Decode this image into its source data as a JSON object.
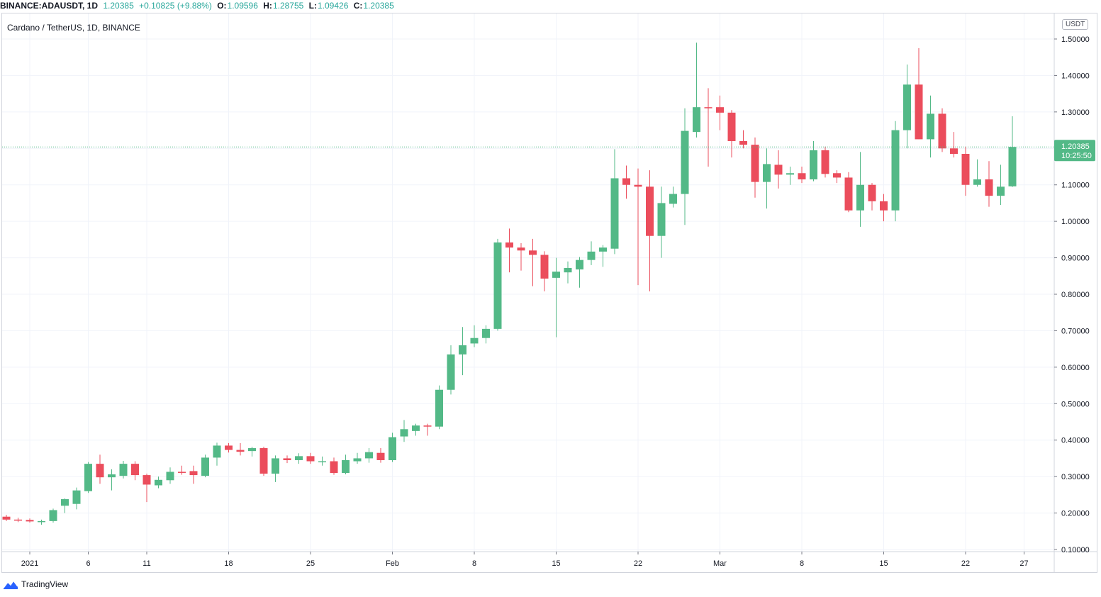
{
  "header": {
    "symbol": "BINANCE:ADAUSDT, 1D",
    "last": "1.20385",
    "change": "+0.10825 (+9.88%)",
    "o_label": "O:",
    "o_val": "1.09596",
    "h_label": "H:",
    "h_val": "1.28755",
    "l_label": "L:",
    "l_val": "1.09426",
    "c_label": "C:",
    "c_val": "1.20385"
  },
  "chart_title": "Cardano / TetherUS, 1D, BINANCE",
  "unit": "USDT",
  "price_tag": {
    "price": "1.20385",
    "countdown": "10:25:50"
  },
  "footer": {
    "brand": "TradingView"
  },
  "colors": {
    "up": "#53b987",
    "down": "#eb4d5c",
    "grid": "#f0f3fa",
    "axis_text": "#131722"
  },
  "chart_data": {
    "type": "candlestick",
    "ylim": [
      0.1,
      1.5
    ],
    "grid": true,
    "y_ticks": [
      "1.50000",
      "1.40000",
      "1.30000",
      "1.20000",
      "1.10000",
      "1.00000",
      "0.90000",
      "0.80000",
      "0.70000",
      "0.60000",
      "0.50000",
      "0.40000",
      "0.30000",
      "0.20000",
      "0.10000"
    ],
    "y_tick_values": [
      1.5,
      1.4,
      1.3,
      1.2,
      1.1,
      1.0,
      0.9,
      0.8,
      0.7,
      0.6,
      0.5,
      0.4,
      0.3,
      0.2,
      0.1
    ],
    "x_ticks": [
      {
        "label": "2021",
        "index": 2
      },
      {
        "label": "6",
        "index": 7
      },
      {
        "label": "11",
        "index": 12
      },
      {
        "label": "18",
        "index": 19
      },
      {
        "label": "25",
        "index": 26
      },
      {
        "label": "Feb",
        "index": 33
      },
      {
        "label": "8",
        "index": 40
      },
      {
        "label": "15",
        "index": 47
      },
      {
        "label": "22",
        "index": 54
      },
      {
        "label": "Mar",
        "index": 61
      },
      {
        "label": "8",
        "index": 68
      },
      {
        "label": "15",
        "index": 75
      },
      {
        "label": "22",
        "index": 82
      },
      {
        "label": "27",
        "index": 87
      }
    ],
    "dates": [
      "2020-12-30",
      "2020-12-31",
      "2021-01-01",
      "2021-01-02",
      "2021-01-03",
      "2021-01-04",
      "2021-01-05",
      "2021-01-06",
      "2021-01-07",
      "2021-01-08",
      "2021-01-09",
      "2021-01-10",
      "2021-01-11",
      "2021-01-12",
      "2021-01-13",
      "2021-01-14",
      "2021-01-15",
      "2021-01-16",
      "2021-01-17",
      "2021-01-18",
      "2021-01-19",
      "2021-01-20",
      "2021-01-21",
      "2021-01-22",
      "2021-01-23",
      "2021-01-24",
      "2021-01-25",
      "2021-01-26",
      "2021-01-27",
      "2021-01-28",
      "2021-01-29",
      "2021-01-30",
      "2021-01-31",
      "2021-02-01",
      "2021-02-02",
      "2021-02-03",
      "2021-02-04",
      "2021-02-05",
      "2021-02-06",
      "2021-02-07",
      "2021-02-08",
      "2021-02-09",
      "2021-02-10",
      "2021-02-11",
      "2021-02-12",
      "2021-02-13",
      "2021-02-14",
      "2021-02-15",
      "2021-02-16",
      "2021-02-17",
      "2021-02-18",
      "2021-02-19",
      "2021-02-20",
      "2021-02-21",
      "2021-02-22",
      "2021-02-23",
      "2021-02-24",
      "2021-02-25",
      "2021-02-26",
      "2021-02-27",
      "2021-02-28",
      "2021-03-01",
      "2021-03-02",
      "2021-03-03",
      "2021-03-04",
      "2021-03-05",
      "2021-03-06",
      "2021-03-07",
      "2021-03-08",
      "2021-03-09",
      "2021-03-10",
      "2021-03-11",
      "2021-03-12",
      "2021-03-13",
      "2021-03-14",
      "2021-03-15",
      "2021-03-16",
      "2021-03-17",
      "2021-03-18",
      "2021-03-19",
      "2021-03-20",
      "2021-03-21",
      "2021-03-22",
      "2021-03-23",
      "2021-03-24",
      "2021-03-25",
      "2021-03-26"
    ],
    "candles": [
      {
        "o": 0.19,
        "h": 0.195,
        "l": 0.178,
        "c": 0.182
      },
      {
        "o": 0.182,
        "h": 0.187,
        "l": 0.175,
        "c": 0.18
      },
      {
        "o": 0.181,
        "h": 0.185,
        "l": 0.174,
        "c": 0.177
      },
      {
        "o": 0.175,
        "h": 0.182,
        "l": 0.168,
        "c": 0.178
      },
      {
        "o": 0.178,
        "h": 0.212,
        "l": 0.174,
        "c": 0.208
      },
      {
        "o": 0.22,
        "h": 0.24,
        "l": 0.2,
        "c": 0.238
      },
      {
        "o": 0.225,
        "h": 0.27,
        "l": 0.21,
        "c": 0.262
      },
      {
        "o": 0.26,
        "h": 0.34,
        "l": 0.255,
        "c": 0.335
      },
      {
        "o": 0.335,
        "h": 0.36,
        "l": 0.28,
        "c": 0.298
      },
      {
        "o": 0.298,
        "h": 0.32,
        "l": 0.262,
        "c": 0.306
      },
      {
        "o": 0.302,
        "h": 0.343,
        "l": 0.295,
        "c": 0.335
      },
      {
        "o": 0.335,
        "h": 0.342,
        "l": 0.29,
        "c": 0.304
      },
      {
        "o": 0.304,
        "h": 0.308,
        "l": 0.23,
        "c": 0.278
      },
      {
        "o": 0.276,
        "h": 0.3,
        "l": 0.268,
        "c": 0.291
      },
      {
        "o": 0.29,
        "h": 0.325,
        "l": 0.28,
        "c": 0.313
      },
      {
        "o": 0.313,
        "h": 0.33,
        "l": 0.305,
        "c": 0.312
      },
      {
        "o": 0.315,
        "h": 0.33,
        "l": 0.28,
        "c": 0.304
      },
      {
        "o": 0.302,
        "h": 0.36,
        "l": 0.298,
        "c": 0.352
      },
      {
        "o": 0.352,
        "h": 0.393,
        "l": 0.33,
        "c": 0.385
      },
      {
        "o": 0.385,
        "h": 0.392,
        "l": 0.366,
        "c": 0.373
      },
      {
        "o": 0.373,
        "h": 0.392,
        "l": 0.358,
        "c": 0.368
      },
      {
        "o": 0.37,
        "h": 0.382,
        "l": 0.355,
        "c": 0.378
      },
      {
        "o": 0.378,
        "h": 0.382,
        "l": 0.302,
        "c": 0.308
      },
      {
        "o": 0.308,
        "h": 0.358,
        "l": 0.285,
        "c": 0.35
      },
      {
        "o": 0.35,
        "h": 0.358,
        "l": 0.337,
        "c": 0.345
      },
      {
        "o": 0.345,
        "h": 0.364,
        "l": 0.335,
        "c": 0.356
      },
      {
        "o": 0.356,
        "h": 0.365,
        "l": 0.335,
        "c": 0.342
      },
      {
        "o": 0.342,
        "h": 0.355,
        "l": 0.33,
        "c": 0.342
      },
      {
        "o": 0.342,
        "h": 0.352,
        "l": 0.305,
        "c": 0.31
      },
      {
        "o": 0.31,
        "h": 0.36,
        "l": 0.306,
        "c": 0.345
      },
      {
        "o": 0.342,
        "h": 0.365,
        "l": 0.335,
        "c": 0.35
      },
      {
        "o": 0.35,
        "h": 0.378,
        "l": 0.338,
        "c": 0.367
      },
      {
        "o": 0.365,
        "h": 0.378,
        "l": 0.338,
        "c": 0.345
      },
      {
        "o": 0.345,
        "h": 0.42,
        "l": 0.34,
        "c": 0.408
      },
      {
        "o": 0.41,
        "h": 0.455,
        "l": 0.395,
        "c": 0.43
      },
      {
        "o": 0.425,
        "h": 0.445,
        "l": 0.412,
        "c": 0.44
      },
      {
        "o": 0.44,
        "h": 0.445,
        "l": 0.412,
        "c": 0.437
      },
      {
        "o": 0.437,
        "h": 0.55,
        "l": 0.43,
        "c": 0.538
      },
      {
        "o": 0.538,
        "h": 0.66,
        "l": 0.525,
        "c": 0.635
      },
      {
        "o": 0.635,
        "h": 0.71,
        "l": 0.578,
        "c": 0.66
      },
      {
        "o": 0.665,
        "h": 0.715,
        "l": 0.655,
        "c": 0.68
      },
      {
        "o": 0.68,
        "h": 0.715,
        "l": 0.665,
        "c": 0.705
      },
      {
        "o": 0.705,
        "h": 0.952,
        "l": 0.7,
        "c": 0.942
      },
      {
        "o": 0.942,
        "h": 0.98,
        "l": 0.86,
        "c": 0.928
      },
      {
        "o": 0.928,
        "h": 0.94,
        "l": 0.865,
        "c": 0.92
      },
      {
        "o": 0.92,
        "h": 0.952,
        "l": 0.822,
        "c": 0.908
      },
      {
        "o": 0.908,
        "h": 0.918,
        "l": 0.808,
        "c": 0.843
      },
      {
        "o": 0.845,
        "h": 0.9,
        "l": 0.682,
        "c": 0.862
      },
      {
        "o": 0.86,
        "h": 0.89,
        "l": 0.83,
        "c": 0.872
      },
      {
        "o": 0.868,
        "h": 0.902,
        "l": 0.818,
        "c": 0.894
      },
      {
        "o": 0.894,
        "h": 0.945,
        "l": 0.88,
        "c": 0.917
      },
      {
        "o": 0.917,
        "h": 0.935,
        "l": 0.875,
        "c": 0.928
      },
      {
        "o": 0.925,
        "h": 1.198,
        "l": 0.91,
        "c": 1.118
      },
      {
        "o": 1.118,
        "h": 1.153,
        "l": 1.062,
        "c": 1.1
      },
      {
        "o": 1.1,
        "h": 1.145,
        "l": 0.825,
        "c": 1.095
      },
      {
        "o": 1.095,
        "h": 1.14,
        "l": 0.808,
        "c": 0.96
      },
      {
        "o": 0.96,
        "h": 1.095,
        "l": 0.9,
        "c": 1.05
      },
      {
        "o": 1.048,
        "h": 1.095,
        "l": 1.038,
        "c": 1.075
      },
      {
        "o": 1.075,
        "h": 1.31,
        "l": 0.99,
        "c": 1.248
      },
      {
        "o": 1.245,
        "h": 1.49,
        "l": 1.23,
        "c": 1.313
      },
      {
        "o": 1.313,
        "h": 1.365,
        "l": 1.15,
        "c": 1.31
      },
      {
        "o": 1.313,
        "h": 1.345,
        "l": 1.25,
        "c": 1.298
      },
      {
        "o": 1.298,
        "h": 1.305,
        "l": 1.175,
        "c": 1.22
      },
      {
        "o": 1.22,
        "h": 1.25,
        "l": 1.2,
        "c": 1.21
      },
      {
        "o": 1.21,
        "h": 1.23,
        "l": 1.065,
        "c": 1.108
      },
      {
        "o": 1.108,
        "h": 1.2,
        "l": 1.035,
        "c": 1.157
      },
      {
        "o": 1.155,
        "h": 1.195,
        "l": 1.09,
        "c": 1.128
      },
      {
        "o": 1.128,
        "h": 1.15,
        "l": 1.1,
        "c": 1.132
      },
      {
        "o": 1.132,
        "h": 1.15,
        "l": 1.105,
        "c": 1.115
      },
      {
        "o": 1.115,
        "h": 1.22,
        "l": 1.11,
        "c": 1.195
      },
      {
        "o": 1.195,
        "h": 1.205,
        "l": 1.12,
        "c": 1.13
      },
      {
        "o": 1.132,
        "h": 1.14,
        "l": 1.105,
        "c": 1.12
      },
      {
        "o": 1.12,
        "h": 1.135,
        "l": 1.025,
        "c": 1.03
      },
      {
        "o": 1.03,
        "h": 1.19,
        "l": 0.985,
        "c": 1.1
      },
      {
        "o": 1.1,
        "h": 1.105,
        "l": 1.03,
        "c": 1.055
      },
      {
        "o": 1.055,
        "h": 1.075,
        "l": 1.0,
        "c": 1.03
      },
      {
        "o": 1.03,
        "h": 1.275,
        "l": 1.0,
        "c": 1.25
      },
      {
        "o": 1.25,
        "h": 1.43,
        "l": 1.2,
        "c": 1.375
      },
      {
        "o": 1.375,
        "h": 1.475,
        "l": 1.225,
        "c": 1.225
      },
      {
        "o": 1.225,
        "h": 1.345,
        "l": 1.175,
        "c": 1.295
      },
      {
        "o": 1.295,
        "h": 1.31,
        "l": 1.19,
        "c": 1.2
      },
      {
        "o": 1.2,
        "h": 1.245,
        "l": 1.175,
        "c": 1.185
      },
      {
        "o": 1.185,
        "h": 1.205,
        "l": 1.07,
        "c": 1.1
      },
      {
        "o": 1.1,
        "h": 1.17,
        "l": 1.095,
        "c": 1.115
      },
      {
        "o": 1.115,
        "h": 1.165,
        "l": 1.04,
        "c": 1.07
      },
      {
        "o": 1.07,
        "h": 1.155,
        "l": 1.045,
        "c": 1.095
      },
      {
        "o": 1.096,
        "h": 1.288,
        "l": 1.094,
        "c": 1.204
      }
    ]
  }
}
